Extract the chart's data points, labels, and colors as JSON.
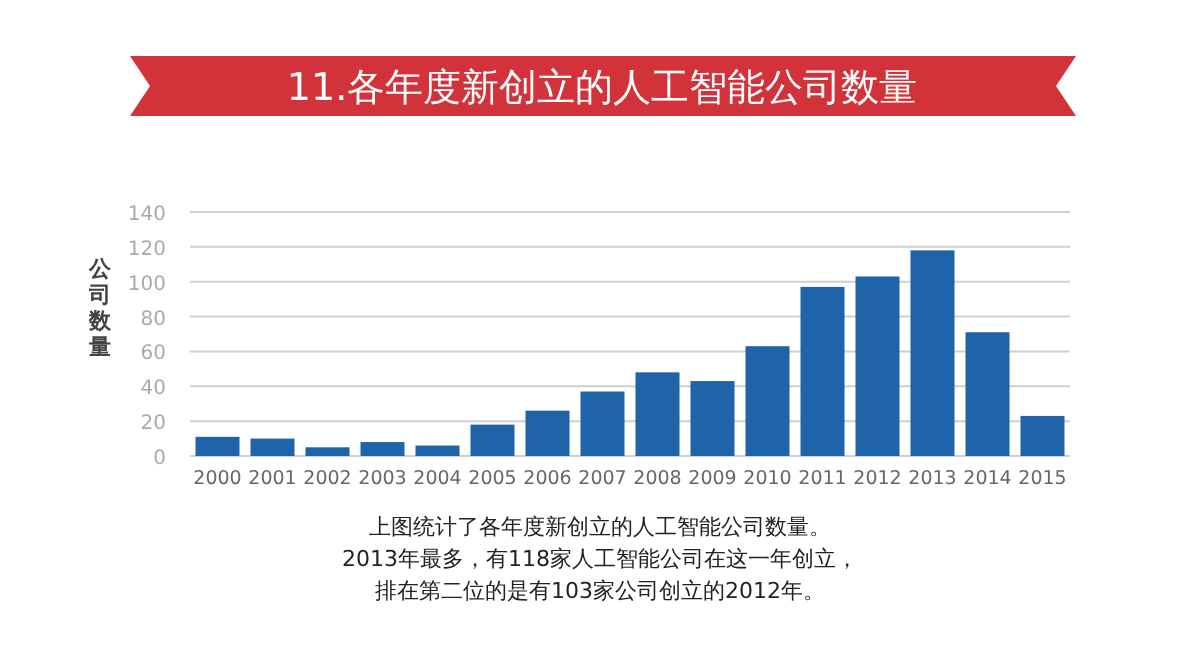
{
  "chart_data": {
    "type": "bar",
    "title": "11.各年度新创立的人工智能公司数量",
    "ylabel": "公司数量",
    "categories": [
      "2000",
      "2001",
      "2002",
      "2003",
      "2004",
      "2005",
      "2006",
      "2007",
      "2008",
      "2009",
      "2010",
      "2011",
      "2012",
      "2013",
      "2014",
      "2015"
    ],
    "values": [
      11,
      10,
      5,
      8,
      6,
      18,
      26,
      37,
      48,
      43,
      63,
      97,
      103,
      118,
      71,
      23
    ],
    "color": "#1f64a8",
    "ylim": [
      0,
      140
    ],
    "yticks": [
      0,
      20,
      40,
      60,
      80,
      100,
      120,
      140
    ],
    "grid": "y",
    "annotations": [
      "上图统计了各年度新创立的人工智能公司数量。",
      "2013年最多，有118家人工智能公司在这一年创立，",
      "排在第二位的是有103家公司创立的2012年。"
    ]
  }
}
